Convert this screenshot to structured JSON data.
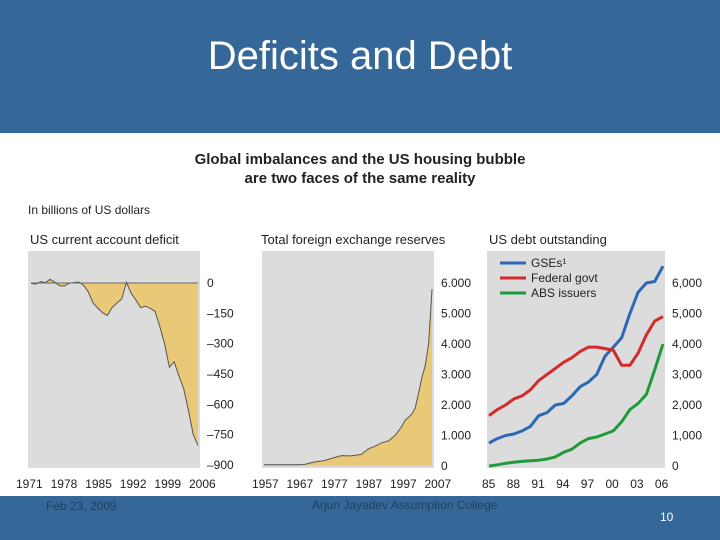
{
  "slide": {
    "title": "Deficits and Debt",
    "footer_date": "Feb 23, 2009",
    "footer_author": "Arjun Jayadev Assumption College",
    "page_number": "10"
  },
  "figure": {
    "title_line1": "Global imbalances and the US housing bubble",
    "title_line2": "are two faces of the same reality",
    "units": "In billions of US dollars"
  },
  "colors": {
    "background": "#356899",
    "panel": "#dcdcdc",
    "area_fill": "#e9c978",
    "gse": "#2c68b3",
    "federal": "#d42a2a",
    "abs": "#209a3b"
  },
  "chart_data": [
    {
      "type": "area",
      "title": "US current account deficit",
      "x_tick_labels": [
        "1971",
        "1978",
        "1985",
        "1992",
        "1999",
        "2006"
      ],
      "y_tick_labels": [
        "0",
        "–150",
        "–300",
        "–450",
        "–600",
        "–750",
        "–900"
      ],
      "ylim": [
        -900,
        0
      ],
      "xlim": [
        1971,
        2006
      ],
      "x": [
        1971,
        1972,
        1973,
        1974,
        1975,
        1976,
        1977,
        1978,
        1979,
        1980,
        1981,
        1982,
        1983,
        1984,
        1985,
        1986,
        1987,
        1988,
        1989,
        1990,
        1991,
        1992,
        1993,
        1994,
        1995,
        1996,
        1997,
        1998,
        1999,
        2000,
        2001,
        2002,
        2003,
        2004,
        2005,
        2006
      ],
      "values": [
        -1,
        -6,
        7,
        2,
        18,
        4,
        -14,
        -15,
        -1,
        2,
        5,
        -11,
        -44,
        -99,
        -124,
        -147,
        -161,
        -121,
        -99,
        -79,
        3,
        -51,
        -85,
        -122,
        -114,
        -125,
        -141,
        -215,
        -301,
        -417,
        -389,
        -459,
        -522,
        -631,
        -749,
        -803
      ]
    },
    {
      "type": "area",
      "title": "Total foreign exchange reserves",
      "x_tick_labels": [
        "1957",
        "1967",
        "1977",
        "1987",
        "1997",
        "2007"
      ],
      "y_tick_labels": [
        "6.000",
        "5.000",
        "4.000",
        "3.000",
        "2.000",
        "1.000",
        "0"
      ],
      "ylim": [
        0,
        6500
      ],
      "xlim": [
        1957,
        2007
      ],
      "x": [
        1957,
        1960,
        1963,
        1966,
        1969,
        1970,
        1972,
        1975,
        1978,
        1980,
        1983,
        1986,
        1988,
        1990,
        1992,
        1994,
        1996,
        1998,
        1999,
        2000,
        2001,
        2002,
        2003,
        2004,
        2005,
        2006,
        2007
      ],
      "values": [
        40,
        40,
        40,
        40,
        50,
        80,
        130,
        180,
        280,
        340,
        330,
        380,
        560,
        650,
        760,
        820,
        1000,
        1300,
        1500,
        1600,
        1700,
        1900,
        2400,
        2900,
        3300,
        4000,
        5800
      ]
    },
    {
      "type": "line",
      "title": "US debt outstanding",
      "x_tick_labels": [
        "85",
        "88",
        "91",
        "94",
        "97",
        "00",
        "03",
        "06"
      ],
      "y_tick_labels": [
        "6,000",
        "5,000",
        "4,000",
        "3,000",
        "2,000",
        "1,000",
        "0"
      ],
      "ylim": [
        0,
        6500
      ],
      "xlim": [
        1985,
        2006
      ],
      "x": [
        1985,
        1986,
        1987,
        1988,
        1989,
        1990,
        1991,
        1992,
        1993,
        1994,
        1995,
        1996,
        1997,
        1998,
        1999,
        2000,
        2001,
        2002,
        2003,
        2004,
        2005,
        2006
      ],
      "series": [
        {
          "name": "GSEs¹",
          "values": [
            750,
            900,
            1000,
            1050,
            1150,
            1300,
            1650,
            1750,
            2000,
            2050,
            2300,
            2600,
            2750,
            3000,
            3600,
            3900,
            4200,
            5000,
            5700,
            6000,
            6050,
            6550
          ]
        },
        {
          "name": "Federal govt",
          "values": [
            1650,
            1850,
            2000,
            2200,
            2300,
            2500,
            2800,
            3000,
            3200,
            3400,
            3550,
            3750,
            3900,
            3900,
            3850,
            3800,
            3300,
            3300,
            3700,
            4300,
            4750,
            4900
          ]
        },
        {
          "name": "ABS issuers",
          "values": [
            0,
            40,
            90,
            120,
            150,
            170,
            190,
            230,
            300,
            450,
            550,
            750,
            900,
            950,
            1050,
            1150,
            1450,
            1850,
            2050,
            2350,
            3150,
            4000
          ]
        }
      ]
    }
  ]
}
